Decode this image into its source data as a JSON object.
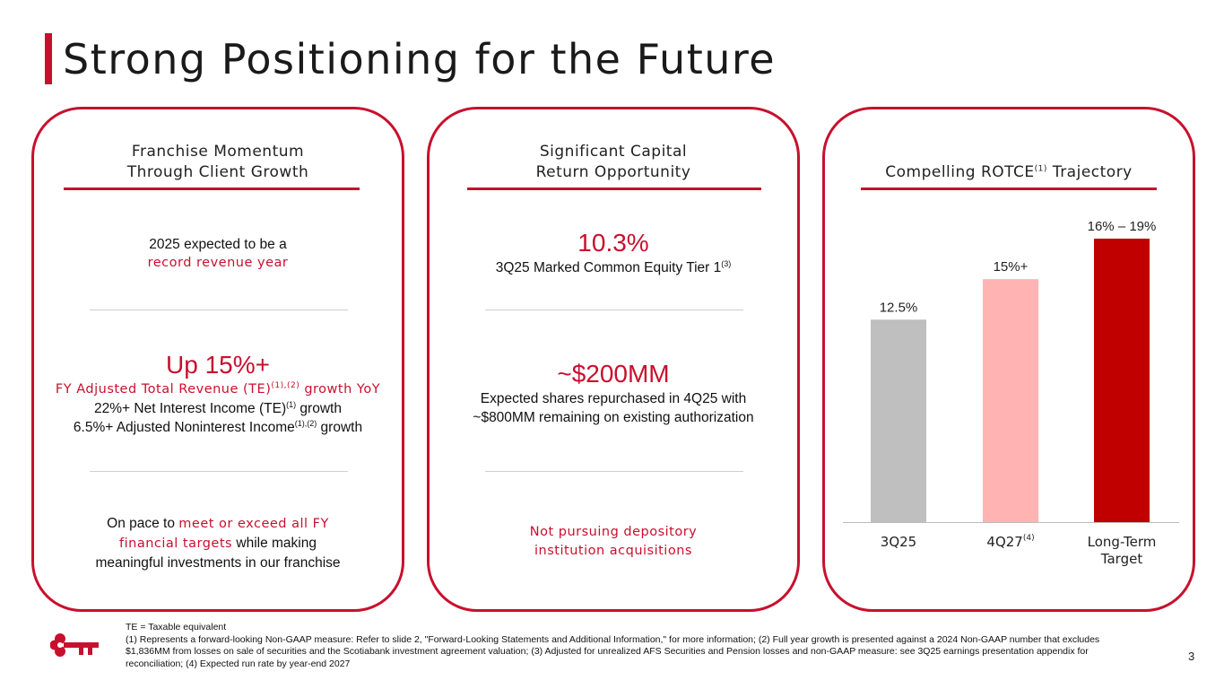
{
  "title": "Strong Positioning for the Future",
  "brand": {
    "accent": "#C8102E"
  },
  "panel1": {
    "heading_line1": "Franchise Momentum",
    "heading_line2": "Through Client Growth",
    "block1": {
      "line1": "2025 expected to be a",
      "line2": "record revenue year"
    },
    "block2": {
      "headline": "Up 15%+",
      "line1_pre": "FY Adjusted Total Revenue (TE)",
      "line1_sup": "(1),(2)",
      "line1_post": " growth YoY",
      "line2_pre": "22%+ Net Interest Income (TE)",
      "line2_sup": "(1)",
      "line2_post": " growth",
      "line3_pre": "6.5%+ Adjusted Noninterest Income",
      "line3_sup": "(1),(2)",
      "line3_post": " growth"
    },
    "block3": {
      "line1_pre": "On pace to ",
      "line1_red": "meet or exceed all FY",
      "line2_red": "financial targets",
      "line2_post": " while making",
      "line3": "meaningful investments in our franchise"
    }
  },
  "panel2": {
    "heading_line1": "Significant Capital",
    "heading_line2": "Return Opportunity",
    "block1": {
      "headline": "10.3%",
      "sub_pre": "3Q25 Marked Common Equity Tier 1",
      "sub_sup": "(3)"
    },
    "block2": {
      "headline": "~$200MM",
      "line1": "Expected shares repurchased in 4Q25 with",
      "line2": "~$800MM remaining on existing authorization"
    },
    "block3": {
      "line1": "Not pursuing depository",
      "line2": "institution acquisitions"
    }
  },
  "panel3": {
    "heading_pre": "Compelling ROTCE",
    "heading_sup": "(1)",
    "heading_post": " Trajectory"
  },
  "chart_data": {
    "type": "bar",
    "title": "Compelling ROTCE(1) Trajectory",
    "categories": [
      "3Q25",
      "4Q27(4)",
      "Long-Term Target"
    ],
    "values": [
      12.5,
      15,
      17.5
    ],
    "data_labels": [
      "12.5%",
      "15%+",
      "16% – 19%"
    ],
    "colors": [
      "#BFBFBF",
      "#FFB3B3",
      "#C00000"
    ],
    "ylim": [
      0,
      17.5
    ],
    "grid": false,
    "xlabel": "",
    "ylabel": ""
  },
  "footnotes": {
    "line0": "TE = Taxable equivalent",
    "text": "(1) Represents a forward-looking Non-GAAP measure: Refer to slide 2, \"Forward-Looking Statements and Additional Information,\" for more information; (2) Full year growth is presented against a 2024 Non-GAAP number that excludes $1,836MM from losses on sale of securities and the Scotiabank investment agreement valuation; (3) Adjusted for unrealized AFS Securities and Pension losses and non-GAAP measure: see 3Q25 earnings presentation appendix for reconciliation; (4) Expected run rate by year-end 2027"
  },
  "page_number": "3"
}
